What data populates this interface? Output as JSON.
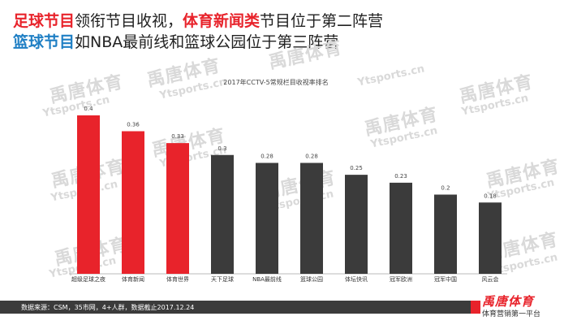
{
  "headline": {
    "line1_part1": "足球节目",
    "line1_part2": "领衔节目收视，",
    "line1_part3": "体育新闻类",
    "line1_part4": "节目位于第二阵营",
    "line2_part1": "篮球节目",
    "line2_part2": "如NBA最前线和篮球公园位于第三阵营"
  },
  "watermark": {
    "cn": "禹唐体育",
    "en": "Ytsports.cn"
  },
  "footer": {
    "source": "数据来源：CSM，35市网，4+人群，数据截止2017.12.24"
  },
  "logo": {
    "name": "禹唐体育",
    "tagline": "体育营销第一平台"
  },
  "colors": {
    "highlight": "#e8232b",
    "default": "#3b3b3b",
    "blue_text": "#1f7fc4"
  },
  "chart_data": {
    "type": "bar",
    "title": "2017年CCTV-5常规栏目收视率排名",
    "categories": [
      "超级足球之夜",
      "体育新闻",
      "体育世界",
      "天下足球",
      "NBA最前线",
      "篮球公园",
      "体坛快讯",
      "冠军欧洲",
      "冠军中国",
      "风云会"
    ],
    "values": [
      0.4,
      0.36,
      0.33,
      0.3,
      0.28,
      0.28,
      0.25,
      0.23,
      0.2,
      0.18
    ],
    "value_labels": [
      "0.4",
      "0.36",
      "0.33",
      "0.3",
      "0.28",
      "0.28",
      "0.25",
      "0.23",
      "0.2",
      "0.18"
    ],
    "highlighted": [
      true,
      true,
      true,
      false,
      false,
      false,
      false,
      false,
      false,
      false
    ],
    "ylim": [
      0,
      0.4
    ],
    "grid": false,
    "legend": "none"
  }
}
